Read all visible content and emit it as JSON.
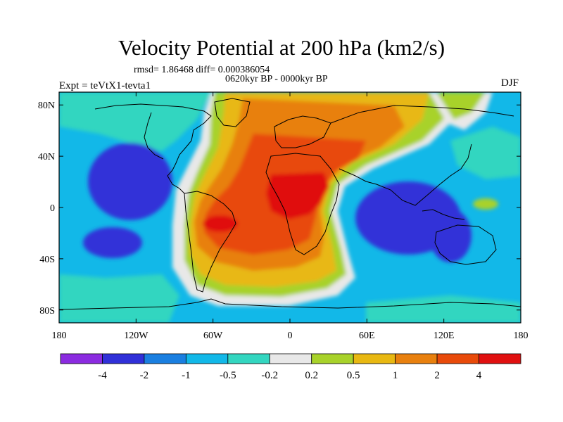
{
  "header": {
    "title": "Velocity Potential at 200 hPa (km2/s)",
    "stats": "rmsd= 1.86468 diff= 0.000386054",
    "period": "0620kyr BP - 0000kyr BP",
    "experiment": "Expt = teVtX1-tevta1",
    "season": "DJF"
  },
  "axes": {
    "y_ticks": [
      "80N",
      "40N",
      "0",
      "40S",
      "80S"
    ],
    "x_ticks": [
      "180",
      "120W",
      "60W",
      "0",
      "60E",
      "120E",
      "180"
    ]
  },
  "colorbar": {
    "colors": [
      "#8b2be0",
      "#3030d8",
      "#1a7fe0",
      "#12b8e8",
      "#33d6c0",
      "#e8e8e8",
      "#a8d22a",
      "#e8b812",
      "#e8800e",
      "#e84a0a",
      "#e01010"
    ],
    "labels": [
      "-4",
      "-2",
      "-1",
      "-0.5",
      "-0.2",
      "0.2",
      "0.5",
      "1",
      "2",
      "4"
    ]
  },
  "palette": {
    "ocean_base": "#12b8e8",
    "coastline": "#000000"
  }
}
